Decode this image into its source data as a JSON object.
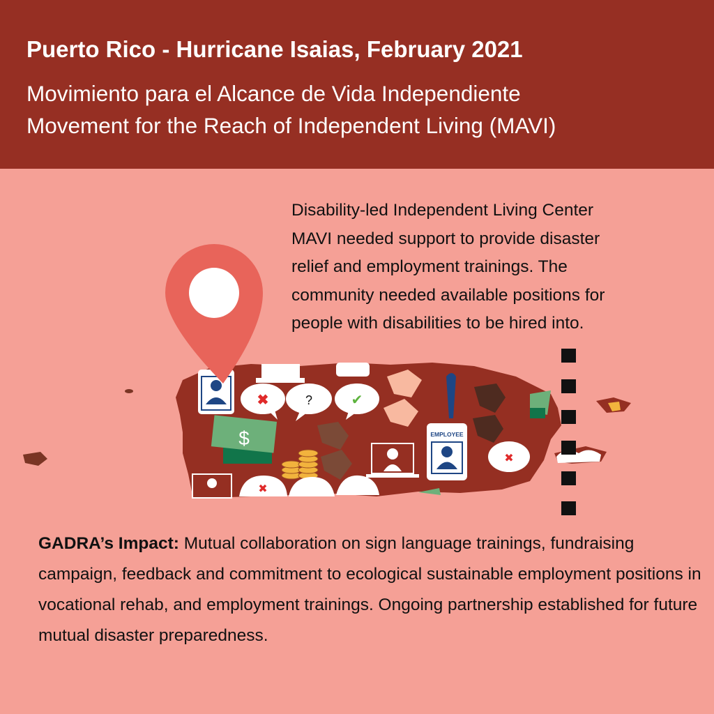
{
  "header": {
    "title": "Puerto Rico - Hurricane Isaias, February 2021",
    "subtitle_es": "Movimiento para el Alcance de Vida Independiente",
    "subtitle_en": "Movement for the Reach of Independent Living (MAVI)"
  },
  "description": {
    "lines": [
      "Disability-led Independent Living Center",
      "MAVI needed support to provide disaster",
      "relief and employment trainings. The",
      "community needed available positions for",
      "people with disabilities to be hired into."
    ]
  },
  "illustration": {
    "badge_label": "EMPLOYEE",
    "dollar_sign": "$",
    "question_mark": "?",
    "icons": [
      "map-pin-icon",
      "employee-badge-icon",
      "laptop-user-icon",
      "speech-bubble-x-icon",
      "speech-bubble-question-icon",
      "speech-bubble-check-icon",
      "hand-icon",
      "money-icon",
      "coins-icon"
    ]
  },
  "impact": {
    "label": "GADRA’s Impact:",
    "text": " Mutual collaboration on sign language trainings, fundraising campaign, feedback and commitment to ecological sustainable employment positions in vocational rehab, and employment trainings. Ongoing partnership established for future mutual disaster preparedness."
  },
  "colors": {
    "header_bg": "#962F23",
    "page_bg": "#F5A096",
    "island": "#952F22",
    "pin": "#E8645A",
    "badge_blue": "#1E4684",
    "money_green": "#6DB07A"
  }
}
